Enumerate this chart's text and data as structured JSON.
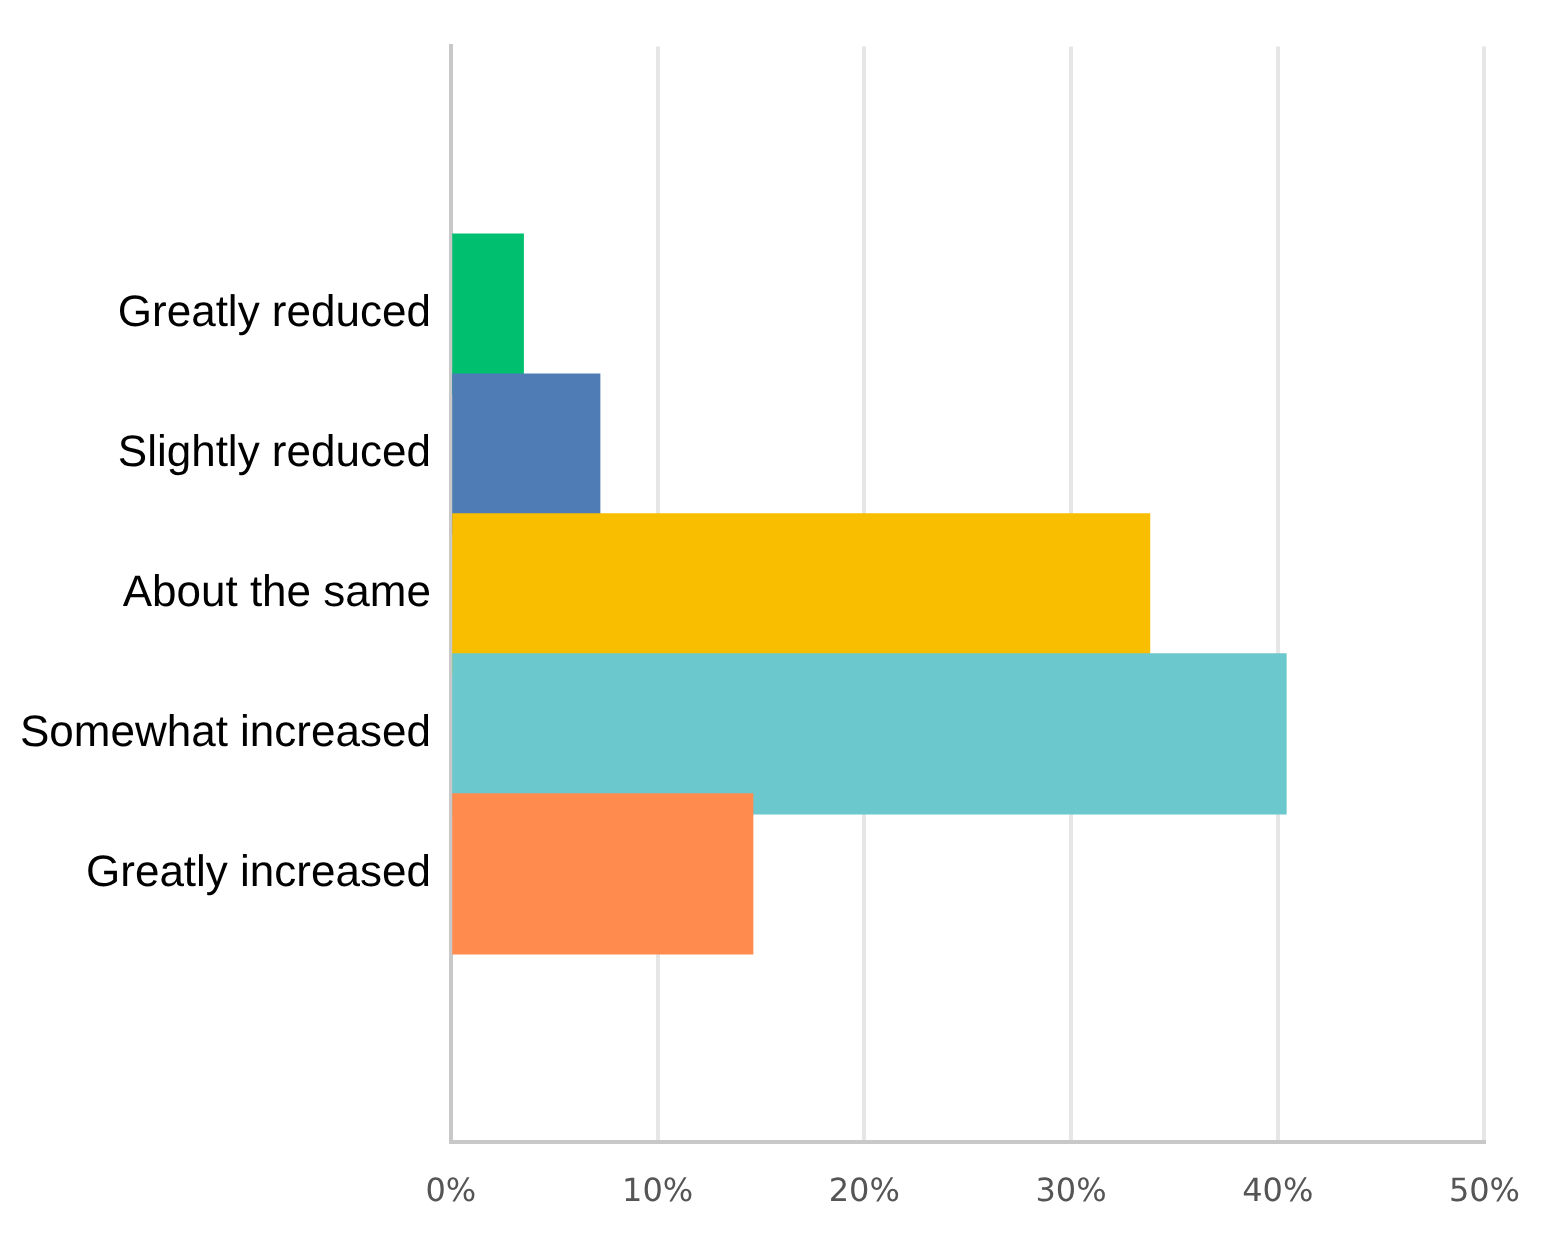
{
  "chart_data": {
    "type": "bar",
    "orientation": "horizontal",
    "categories": [
      "Greatly reduced",
      "Slightly reduced",
      "About the same",
      "Somewhat increased",
      "Greatly increased"
    ],
    "values": [
      3.5,
      7.2,
      33.8,
      40.4,
      14.6
    ],
    "colors": [
      "#00bf6f",
      "#507cb6",
      "#f9be00",
      "#6bc8cd",
      "#ff8b4f"
    ],
    "xlim": [
      0,
      50
    ],
    "xticks": [
      {
        "value": 0,
        "label": "0%"
      },
      {
        "value": 10,
        "label": "10%"
      },
      {
        "value": 20,
        "label": "20%"
      },
      {
        "value": 30,
        "label": "30%"
      },
      {
        "value": 40,
        "label": "40%"
      },
      {
        "value": 50,
        "label": "50%"
      }
    ],
    "grid": "x",
    "legend": false
  }
}
